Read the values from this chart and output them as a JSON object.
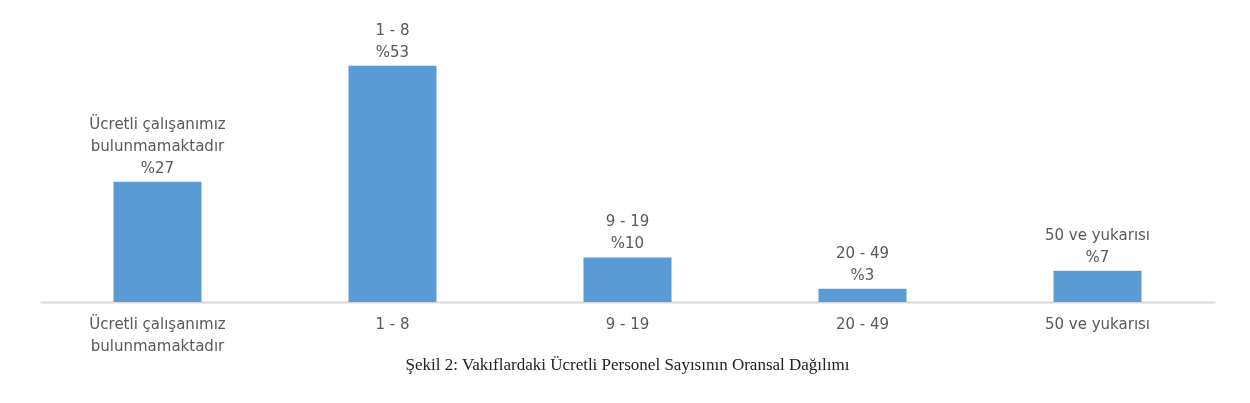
{
  "chart_data": {
    "type": "bar",
    "title": "Şekil 2: Vakıflardaki Ücretli Personel Sayısının Oransal Dağılımı",
    "categories": [
      "Ücretli çalışanımız\nbulunmamaktadır",
      "1 - 8",
      "9 - 19",
      "20 - 49",
      "50 ve yukarısı"
    ],
    "values": [
      27,
      53,
      10,
      3,
      7
    ],
    "color": "#5b9bd5",
    "value_labels": [
      "%27",
      "%53",
      "%10",
      "%3",
      "%7"
    ],
    "annotations": [
      {
        "text": "Ücretli çalışanımız\nbulunmamaktadır",
        "x": "Ücretli çalışanımız\nbulunmamaktadır",
        "y": 27
      },
      {
        "text": "1 - 8",
        "x": "1 - 8",
        "y": 53
      },
      {
        "text": "9 - 19",
        "x": "9 - 19",
        "y": 10
      },
      {
        "text": "20 - 49",
        "x": "20 - 49",
        "y": 3
      },
      {
        "text": "50 ve yukarısı",
        "x": "50 ve yukarısı",
        "y": 7
      }
    ]
  }
}
